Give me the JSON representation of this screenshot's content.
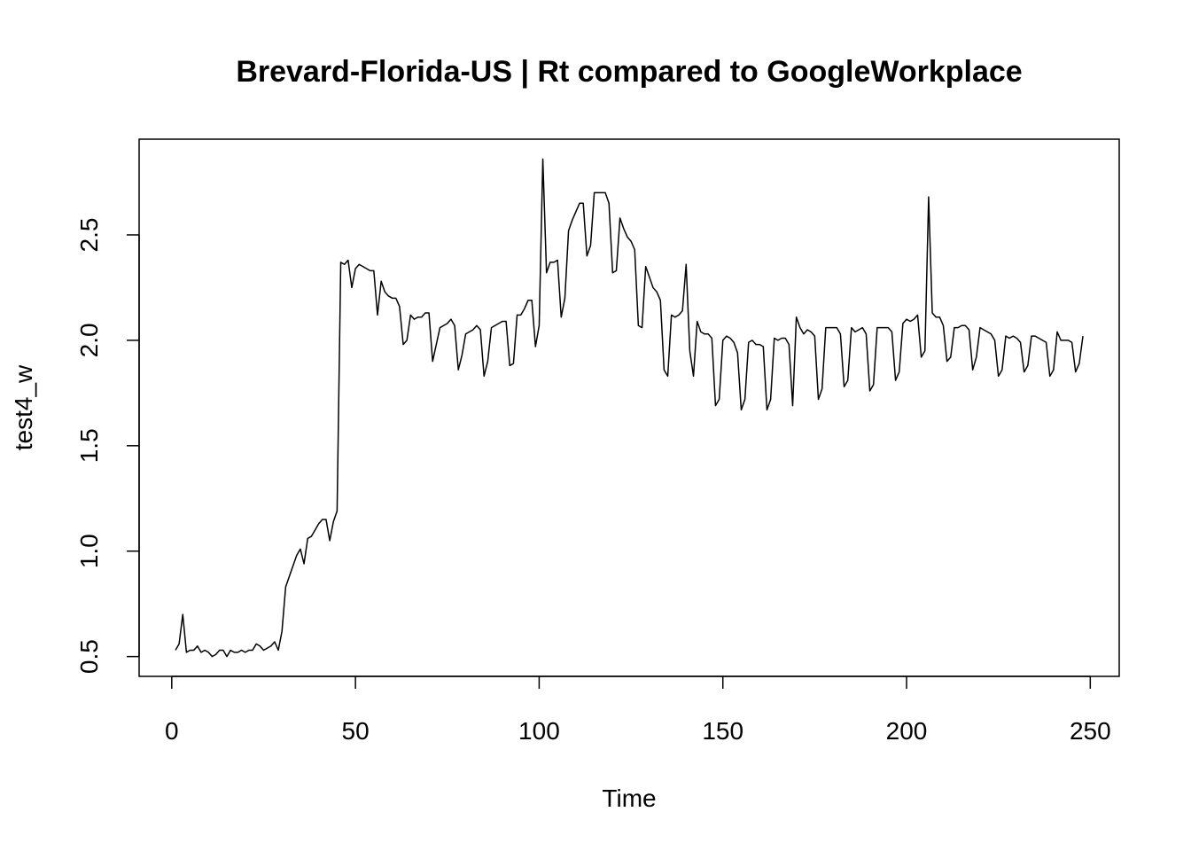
{
  "chart_data": {
    "type": "line",
    "title": "Brevard-Florida-US | Rt compared to GoogleWorkplace",
    "xlabel": "Time",
    "ylabel": "test4_w",
    "color": "#000000",
    "grid": false,
    "xlim": [
      -8.88,
      257.88
    ],
    "ylim": [
      0.406,
      2.954
    ],
    "xticks": [
      0,
      50,
      100,
      150,
      200,
      250
    ],
    "yticks": [
      0.5,
      {
        "value": 1,
        "label": "1.0"
      },
      1.5,
      {
        "value": 2,
        "label": "2.0"
      },
      2.5
    ],
    "x": [
      1,
      2,
      3,
      4,
      5,
      6,
      7,
      8,
      9,
      10,
      11,
      12,
      13,
      14,
      15,
      16,
      17,
      18,
      19,
      20,
      21,
      22,
      23,
      24,
      25,
      26,
      27,
      28,
      29,
      30,
      31,
      32,
      33,
      34,
      35,
      36,
      37,
      38,
      39,
      40,
      41,
      42,
      43,
      44,
      45,
      46,
      47,
      48,
      49,
      50,
      51,
      52,
      53,
      54,
      55,
      56,
      57,
      58,
      59,
      60,
      61,
      62,
      63,
      64,
      65,
      66,
      67,
      68,
      69,
      70,
      71,
      72,
      73,
      74,
      75,
      76,
      77,
      78,
      79,
      80,
      81,
      82,
      83,
      84,
      85,
      86,
      87,
      88,
      89,
      90,
      91,
      92,
      93,
      94,
      95,
      96,
      97,
      98,
      99,
      100,
      101,
      102,
      103,
      104,
      105,
      106,
      107,
      108,
      109,
      110,
      111,
      112,
      113,
      114,
      115,
      116,
      117,
      118,
      119,
      120,
      121,
      122,
      123,
      124,
      125,
      126,
      127,
      128,
      129,
      130,
      131,
      132,
      133,
      134,
      135,
      136,
      137,
      138,
      139,
      140,
      141,
      142,
      143,
      144,
      145,
      146,
      147,
      148,
      149,
      150,
      151,
      152,
      153,
      154,
      155,
      156,
      157,
      158,
      159,
      160,
      161,
      162,
      163,
      164,
      165,
      166,
      167,
      168,
      169,
      170,
      171,
      172,
      173,
      174,
      175,
      176,
      177,
      178,
      179,
      180,
      181,
      182,
      183,
      184,
      185,
      186,
      187,
      188,
      189,
      190,
      191,
      192,
      193,
      194,
      195,
      196,
      197,
      198,
      199,
      200,
      201,
      202,
      203,
      204,
      205,
      206,
      207,
      208,
      209,
      210,
      211,
      212,
      213,
      214,
      215,
      216,
      217,
      218,
      219,
      220,
      221,
      222,
      223,
      224,
      225,
      226,
      227,
      228,
      229,
      230,
      231,
      232,
      233,
      234,
      235,
      236,
      237,
      238,
      239,
      240,
      241,
      242,
      243,
      244,
      245,
      246,
      247,
      248
    ],
    "values": [
      0.53,
      0.56,
      0.7,
      0.52,
      0.53,
      0.53,
      0.55,
      0.52,
      0.53,
      0.52,
      0.5,
      0.51,
      0.53,
      0.53,
      0.5,
      0.53,
      0.52,
      0.52,
      0.53,
      0.52,
      0.53,
      0.53,
      0.56,
      0.55,
      0.53,
      0.54,
      0.55,
      0.57,
      0.53,
      0.62,
      0.83,
      0.88,
      0.93,
      0.98,
      1.01,
      0.94,
      1.06,
      1.07,
      1.1,
      1.13,
      1.15,
      1.15,
      1.05,
      1.14,
      1.19,
      2.37,
      2.36,
      2.38,
      2.25,
      2.34,
      2.36,
      2.35,
      2.34,
      2.33,
      2.33,
      2.12,
      2.28,
      2.23,
      2.21,
      2.2,
      2.2,
      2.16,
      1.98,
      2.0,
      2.12,
      2.1,
      2.11,
      2.11,
      2.13,
      2.13,
      1.9,
      1.98,
      2.06,
      2.07,
      2.08,
      2.1,
      2.07,
      1.86,
      1.93,
      2.03,
      2.04,
      2.05,
      2.07,
      2.05,
      1.83,
      1.9,
      2.06,
      2.07,
      2.08,
      2.09,
      2.09,
      1.88,
      1.89,
      2.12,
      2.12,
      2.15,
      2.19,
      2.19,
      1.97,
      2.07,
      2.86,
      2.32,
      2.37,
      2.37,
      2.38,
      2.11,
      2.2,
      2.52,
      2.57,
      2.61,
      2.65,
      2.65,
      2.4,
      2.45,
      2.7,
      2.7,
      2.7,
      2.7,
      2.65,
      2.32,
      2.33,
      2.58,
      2.53,
      2.49,
      2.47,
      2.43,
      2.07,
      2.06,
      2.35,
      2.3,
      2.25,
      2.23,
      2.19,
      1.86,
      1.83,
      2.12,
      2.11,
      2.12,
      2.14,
      2.36,
      1.95,
      1.83,
      2.09,
      2.04,
      2.03,
      2.03,
      2.01,
      1.69,
      1.72,
      2.0,
      2.02,
      2.01,
      1.99,
      1.94,
      1.67,
      1.72,
      1.99,
      2.0,
      1.98,
      1.98,
      1.97,
      1.67,
      1.72,
      2.01,
      2.0,
      2.01,
      2.01,
      1.98,
      1.69,
      2.11,
      2.06,
      2.03,
      2.05,
      2.04,
      2.02,
      1.72,
      1.77,
      2.06,
      2.06,
      2.06,
      2.06,
      2.03,
      1.78,
      1.81,
      2.06,
      2.04,
      2.05,
      2.06,
      2.03,
      1.76,
      1.79,
      2.06,
      2.06,
      2.06,
      2.06,
      2.04,
      1.81,
      1.85,
      2.08,
      2.1,
      2.09,
      2.1,
      2.12,
      1.92,
      1.95,
      2.68,
      2.13,
      2.11,
      2.11,
      2.07,
      1.9,
      1.92,
      2.06,
      2.06,
      2.07,
      2.07,
      2.05,
      1.86,
      1.92,
      2.06,
      2.05,
      2.04,
      2.03,
      2.0,
      1.83,
      1.86,
      2.02,
      2.01,
      2.02,
      2.01,
      1.99,
      1.85,
      1.88,
      2.02,
      2.02,
      2.01,
      2.0,
      1.99,
      1.83,
      1.86,
      2.04,
      2.0,
      2.0,
      2.0,
      1.99,
      1.85,
      1.89,
      2.02
    ]
  }
}
